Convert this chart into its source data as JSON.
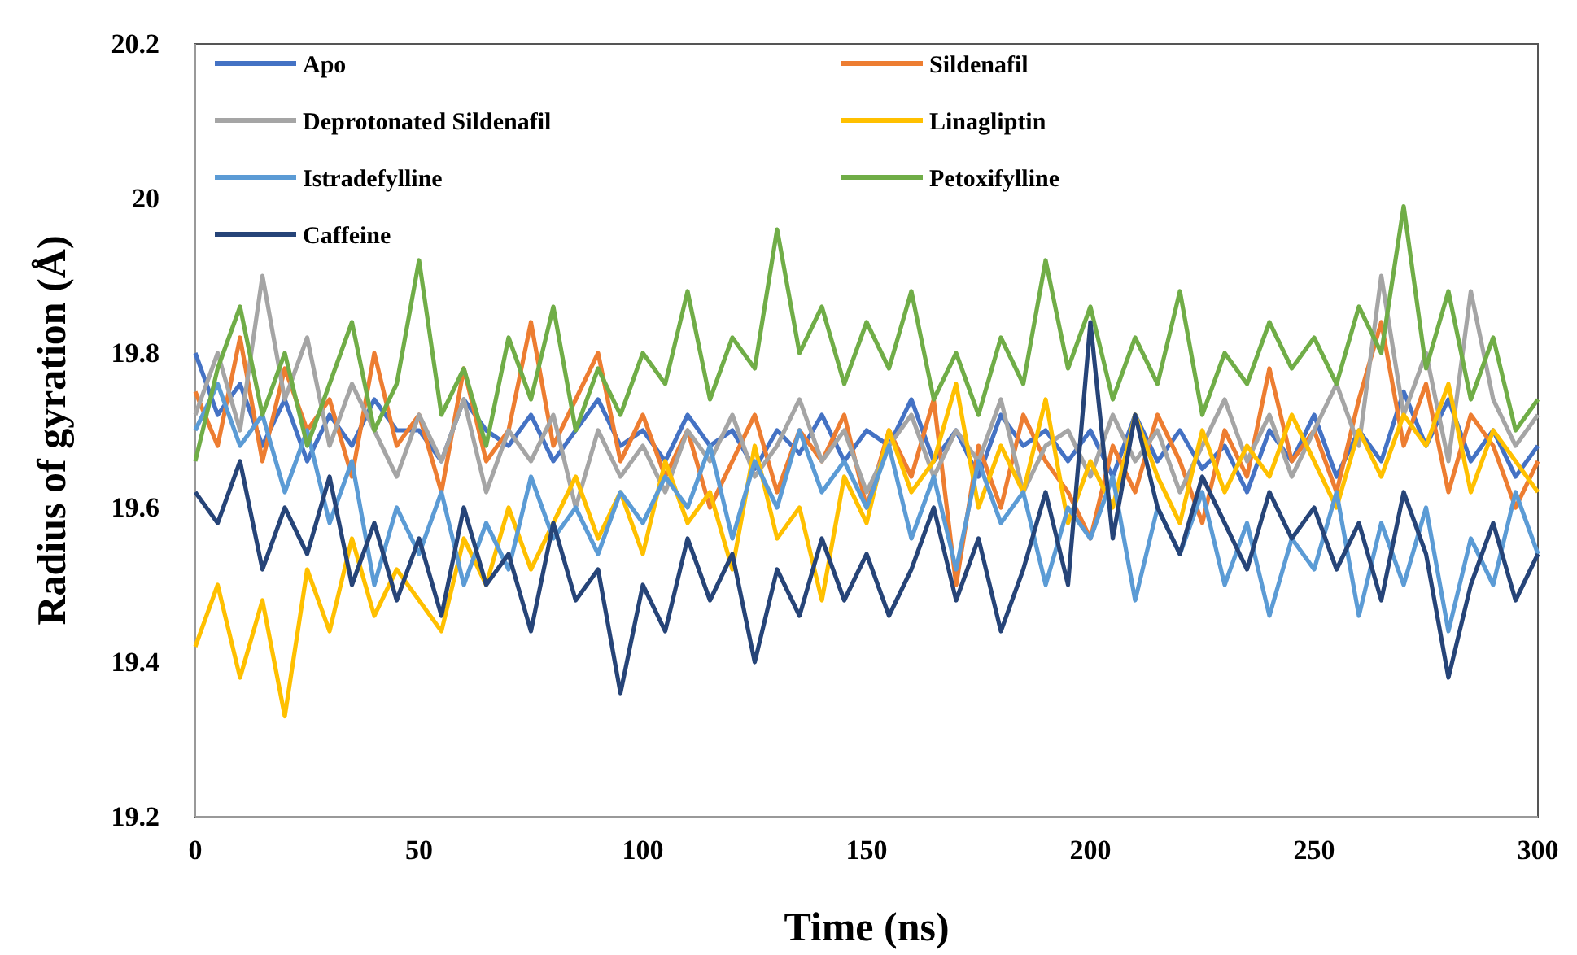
{
  "chart_data": {
    "type": "line",
    "xlabel": "Time (ns)",
    "ylabel": "Radius of gyration (Å)",
    "xlim": [
      0,
      300
    ],
    "xticks": [
      0,
      50,
      100,
      150,
      200,
      250,
      300
    ],
    "ylim": [
      19.2,
      20.2
    ],
    "yticks": [
      19.2,
      19.4,
      19.6,
      19.8,
      20,
      20.2
    ],
    "legend": "top",
    "line_style": "solid",
    "x": [
      0,
      5,
      10,
      15,
      20,
      25,
      30,
      35,
      40,
      45,
      50,
      55,
      60,
      65,
      70,
      75,
      80,
      85,
      90,
      95,
      100,
      105,
      110,
      115,
      120,
      125,
      130,
      135,
      140,
      145,
      150,
      155,
      160,
      165,
      170,
      175,
      180,
      185,
      190,
      195,
      200,
      205,
      210,
      215,
      220,
      225,
      230,
      235,
      240,
      245,
      250,
      255,
      260,
      265,
      270,
      275,
      280,
      285,
      290,
      295,
      300
    ],
    "series": [
      {
        "name": "Apo",
        "color": "#4472c4",
        "values": [
          19.8,
          19.72,
          19.76,
          19.68,
          19.74,
          19.66,
          19.72,
          19.68,
          19.74,
          19.7,
          19.7,
          19.66,
          19.74,
          19.7,
          19.68,
          19.72,
          19.66,
          19.7,
          19.74,
          19.68,
          19.7,
          19.66,
          19.72,
          19.68,
          19.7,
          19.65,
          19.7,
          19.67,
          19.72,
          19.66,
          19.7,
          19.68,
          19.74,
          19.66,
          19.7,
          19.64,
          19.72,
          19.68,
          19.7,
          19.66,
          19.7,
          19.64,
          19.72,
          19.66,
          19.7,
          19.65,
          19.68,
          19.62,
          19.7,
          19.66,
          19.72,
          19.64,
          19.7,
          19.66,
          19.75,
          19.68,
          19.74,
          19.66,
          19.7,
          19.64,
          19.68
        ]
      },
      {
        "name": "Sildenafil",
        "color": "#ed7d31",
        "values": [
          19.75,
          19.68,
          19.82,
          19.66,
          19.78,
          19.7,
          19.74,
          19.64,
          19.8,
          19.68,
          19.72,
          19.62,
          19.78,
          19.66,
          19.7,
          19.84,
          19.68,
          19.74,
          19.8,
          19.66,
          19.72,
          19.64,
          19.7,
          19.6,
          19.66,
          19.72,
          19.62,
          19.7,
          19.66,
          19.72,
          19.6,
          19.7,
          19.64,
          19.74,
          19.5,
          19.68,
          19.6,
          19.72,
          19.66,
          19.62,
          19.56,
          19.68,
          19.62,
          19.72,
          19.66,
          19.58,
          19.7,
          19.64,
          19.78,
          19.66,
          19.7,
          19.62,
          19.74,
          19.84,
          19.68,
          19.76,
          19.62,
          19.72,
          19.68,
          19.6,
          19.66
        ]
      },
      {
        "name": "Deprotonated Sildenafil",
        "color": "#a5a5a5",
        "values": [
          19.72,
          19.8,
          19.7,
          19.9,
          19.74,
          19.82,
          19.68,
          19.76,
          19.7,
          19.64,
          19.72,
          19.66,
          19.74,
          19.62,
          19.7,
          19.66,
          19.72,
          19.6,
          19.7,
          19.64,
          19.68,
          19.62,
          19.7,
          19.66,
          19.72,
          19.64,
          19.68,
          19.74,
          19.66,
          19.7,
          19.62,
          19.68,
          19.72,
          19.64,
          19.7,
          19.66,
          19.74,
          19.62,
          19.68,
          19.7,
          19.64,
          19.72,
          19.66,
          19.7,
          19.62,
          19.68,
          19.74,
          19.66,
          19.72,
          19.64,
          19.7,
          19.76,
          19.68,
          19.9,
          19.72,
          19.8,
          19.66,
          19.88,
          19.74,
          19.68,
          19.72
        ]
      },
      {
        "name": "Linagliptin",
        "color": "#ffc000",
        "values": [
          19.42,
          19.5,
          19.38,
          19.48,
          19.33,
          19.52,
          19.44,
          19.56,
          19.46,
          19.52,
          19.48,
          19.44,
          19.56,
          19.5,
          19.6,
          19.52,
          19.58,
          19.64,
          19.56,
          19.62,
          19.54,
          19.66,
          19.58,
          19.62,
          19.52,
          19.68,
          19.56,
          19.6,
          19.48,
          19.64,
          19.58,
          19.7,
          19.62,
          19.66,
          19.76,
          19.6,
          19.68,
          19.62,
          19.74,
          19.58,
          19.66,
          19.6,
          19.72,
          19.64,
          19.58,
          19.7,
          19.62,
          19.68,
          19.64,
          19.72,
          19.66,
          19.6,
          19.7,
          19.64,
          19.72,
          19.68,
          19.76,
          19.62,
          19.7,
          19.66,
          19.62
        ]
      },
      {
        "name": "Istradefylline",
        "color": "#5b9bd5",
        "values": [
          19.7,
          19.76,
          19.68,
          19.72,
          19.62,
          19.7,
          19.58,
          19.66,
          19.5,
          19.6,
          19.54,
          19.62,
          19.5,
          19.58,
          19.52,
          19.64,
          19.56,
          19.6,
          19.54,
          19.62,
          19.58,
          19.64,
          19.6,
          19.68,
          19.56,
          19.66,
          19.6,
          19.7,
          19.62,
          19.66,
          19.6,
          19.68,
          19.56,
          19.64,
          19.52,
          19.66,
          19.58,
          19.62,
          19.5,
          19.6,
          19.56,
          19.64,
          19.48,
          19.6,
          19.54,
          19.62,
          19.5,
          19.58,
          19.46,
          19.56,
          19.52,
          19.62,
          19.46,
          19.58,
          19.5,
          19.6,
          19.44,
          19.56,
          19.5,
          19.62,
          19.54
        ]
      },
      {
        "name": "Petoxifylline",
        "color": "#70ad47",
        "values": [
          19.66,
          19.78,
          19.86,
          19.72,
          19.8,
          19.68,
          19.76,
          19.84,
          19.7,
          19.76,
          19.92,
          19.72,
          19.78,
          19.68,
          19.82,
          19.74,
          19.86,
          19.7,
          19.78,
          19.72,
          19.8,
          19.76,
          19.88,
          19.74,
          19.82,
          19.78,
          19.96,
          19.8,
          19.86,
          19.76,
          19.84,
          19.78,
          19.88,
          19.74,
          19.8,
          19.72,
          19.82,
          19.76,
          19.92,
          19.78,
          19.86,
          19.74,
          19.82,
          19.76,
          19.88,
          19.72,
          19.8,
          19.76,
          19.84,
          19.78,
          19.82,
          19.76,
          19.86,
          19.8,
          19.99,
          19.78,
          19.88,
          19.74,
          19.82,
          19.7,
          19.74
        ]
      },
      {
        "name": "Caffeine",
        "color": "#264478",
        "values": [
          19.62,
          19.58,
          19.66,
          19.52,
          19.6,
          19.54,
          19.64,
          19.5,
          19.58,
          19.48,
          19.56,
          19.46,
          19.6,
          19.5,
          19.54,
          19.44,
          19.58,
          19.48,
          19.52,
          19.36,
          19.5,
          19.44,
          19.56,
          19.48,
          19.54,
          19.4,
          19.52,
          19.46,
          19.56,
          19.48,
          19.54,
          19.46,
          19.52,
          19.6,
          19.48,
          19.56,
          19.44,
          19.52,
          19.62,
          19.5,
          19.84,
          19.56,
          19.72,
          19.6,
          19.54,
          19.64,
          19.58,
          19.52,
          19.62,
          19.56,
          19.6,
          19.52,
          19.58,
          19.48,
          19.62,
          19.54,
          19.38,
          19.5,
          19.58,
          19.48,
          19.54
        ]
      }
    ]
  }
}
